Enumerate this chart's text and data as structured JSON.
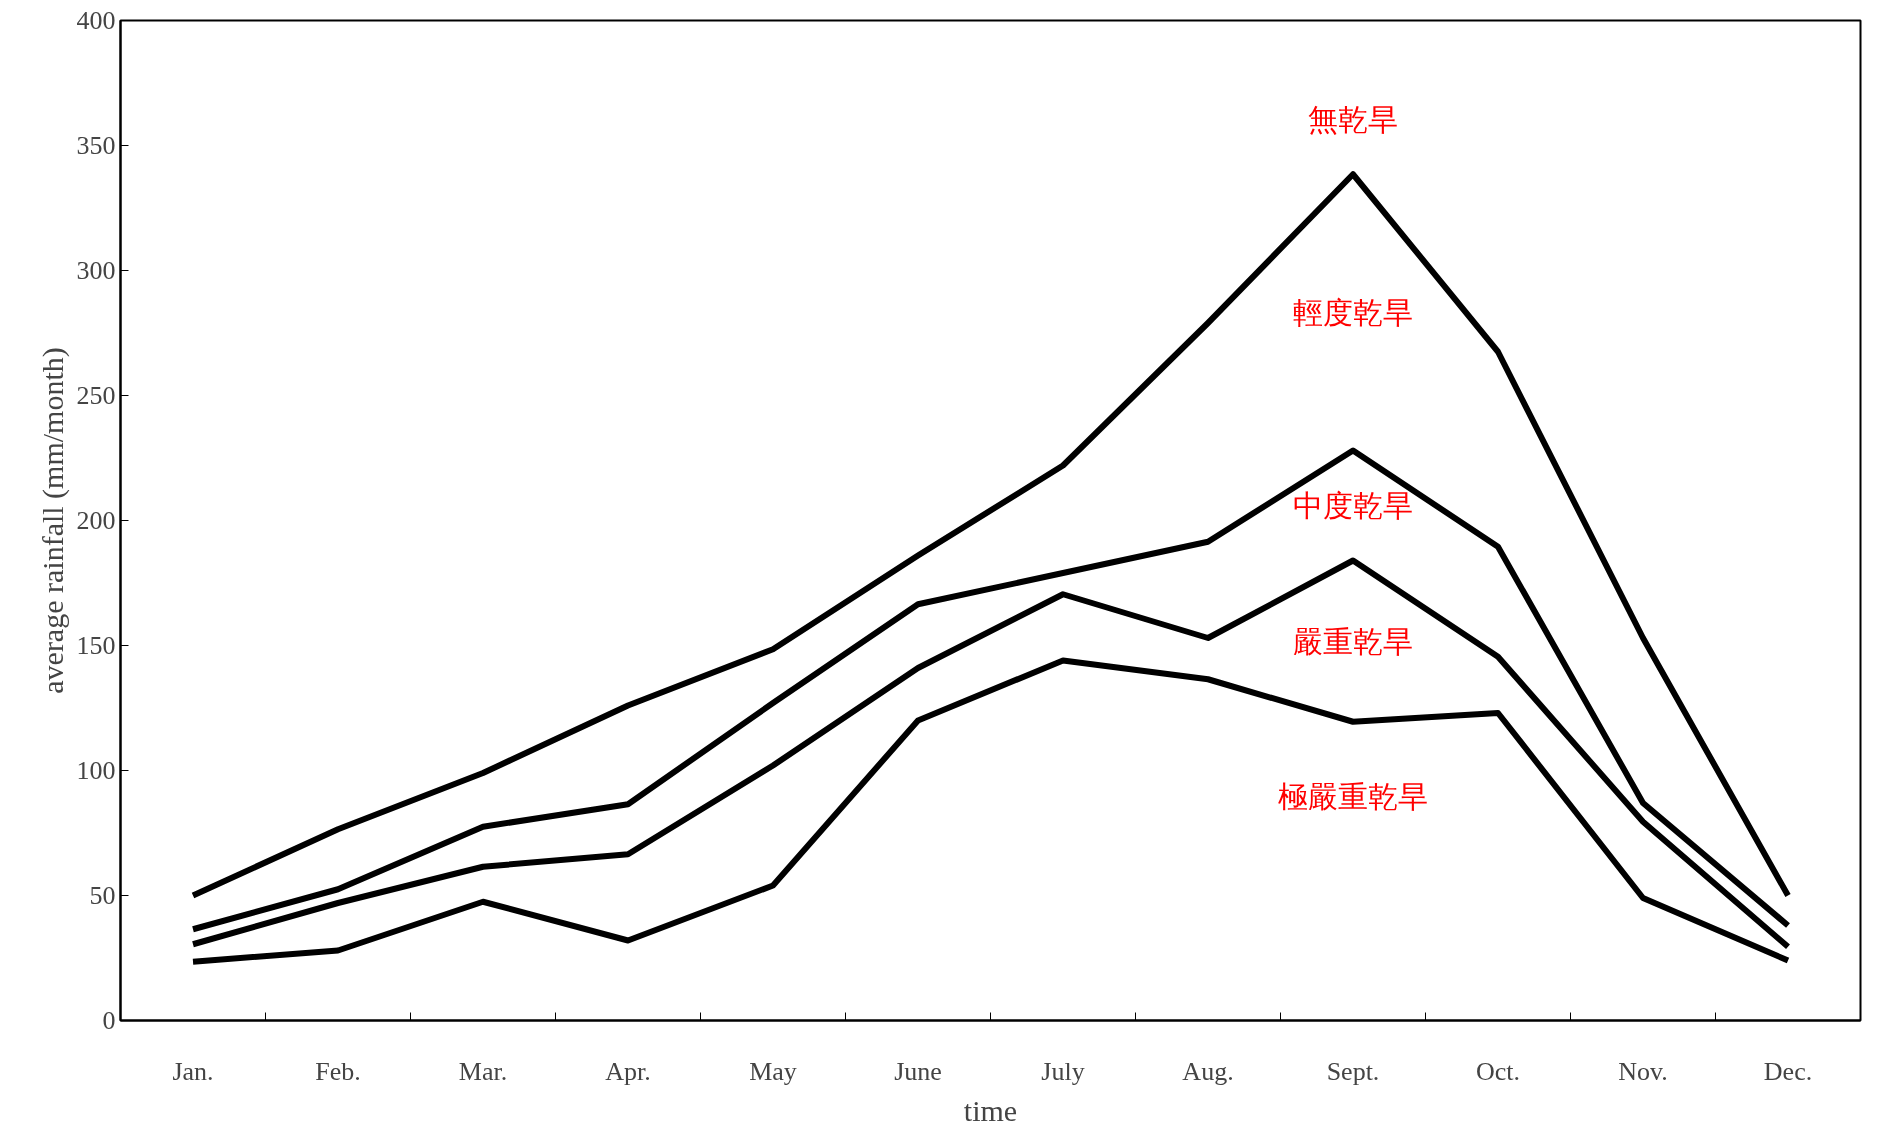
{
  "chart_data": {
    "type": "line",
    "xlabel": "time",
    "ylabel": "average rainfall (mm/month)",
    "categories": [
      "Jan.",
      "Feb.",
      "Mar.",
      "Apr.",
      "May",
      "June",
      "July",
      "Aug.",
      "Sept.",
      "Oct.",
      "Nov.",
      "Dec."
    ],
    "series": [
      {
        "color": "#000000",
        "values": [
          50,
          76.5,
          99,
          126,
          148.5,
          186,
          222,
          279,
          338.5,
          267.5,
          153,
          50
        ]
      },
      {
        "color": "#000000",
        "values": [
          36.5,
          52.5,
          77.5,
          86.5,
          127,
          166.5,
          179,
          191.5,
          228,
          189.5,
          87,
          38
        ]
      },
      {
        "color": "#000000",
        "values": [
          30.5,
          47,
          61.5,
          66.5,
          102,
          141,
          170.5,
          153,
          184,
          145.5,
          79.5,
          29.5
        ]
      },
      {
        "color": "#000000",
        "values": [
          23.5,
          28,
          47.5,
          32,
          54,
          120,
          144,
          136.5,
          119.5,
          123,
          49,
          24
        ]
      }
    ],
    "ylim": [
      0,
      400
    ],
    "yticks": [
      0,
      50,
      100,
      150,
      200,
      250,
      300,
      350,
      400
    ],
    "grid": false,
    "marker": "none",
    "line_style": "solid",
    "annotations": [
      "無乾旱",
      "輕度乾旱",
      "中度乾旱",
      "嚴重乾旱",
      "極嚴重乾旱"
    ]
  }
}
